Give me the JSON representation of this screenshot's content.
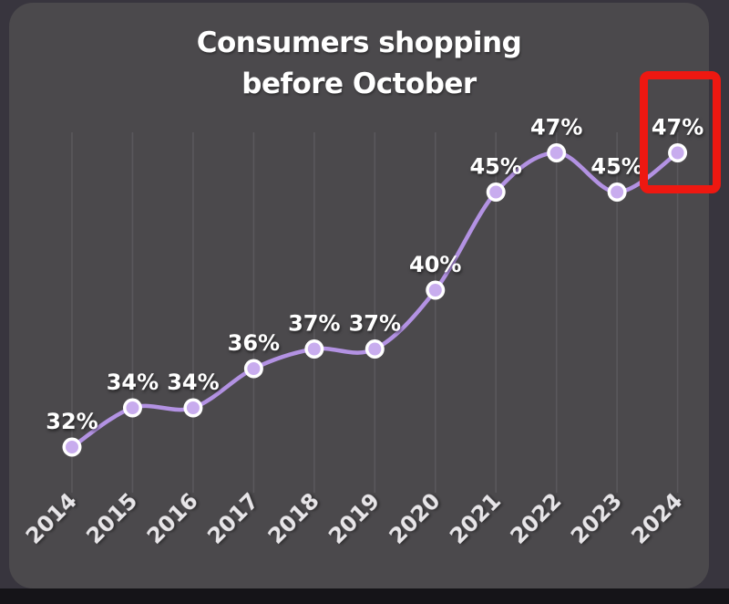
{
  "chart_data": {
    "type": "line",
    "title": "Consumers shopping before October",
    "title_line1": "Consumers shopping",
    "title_line2": "before October",
    "categories": [
      "2014",
      "2015",
      "2016",
      "2017",
      "2018",
      "2019",
      "2020",
      "2021",
      "2022",
      "2023",
      "2024"
    ],
    "values": [
      32,
      34,
      34,
      36,
      37,
      37,
      40,
      45,
      47,
      45,
      47
    ],
    "unit": "%",
    "data_labels": [
      "32%",
      "34%",
      "34%",
      "36%",
      "37%",
      "37%",
      "40%",
      "45%",
      "47%",
      "45%",
      "47%"
    ],
    "xlabel": "",
    "ylabel": "",
    "ylim": [
      30,
      50
    ],
    "grid": "vertical-only",
    "legend": "none",
    "annotation": {
      "kind": "highlight-box",
      "target_category": "2024",
      "target_label": "47%",
      "color": "#ee1811"
    }
  },
  "colors": {
    "card_bg": "#4b494c",
    "outer_bg": "#38353e",
    "bottom_bg": "#151418",
    "line": "#b392e3",
    "marker_fill": "#c8acee",
    "marker_ring": "#ffffff",
    "grid": "#5c5a5e",
    "value_label": "#ffffff",
    "tick_label": "#e7e5e8",
    "title": "#ffffff",
    "highlight": "#ee1811"
  }
}
